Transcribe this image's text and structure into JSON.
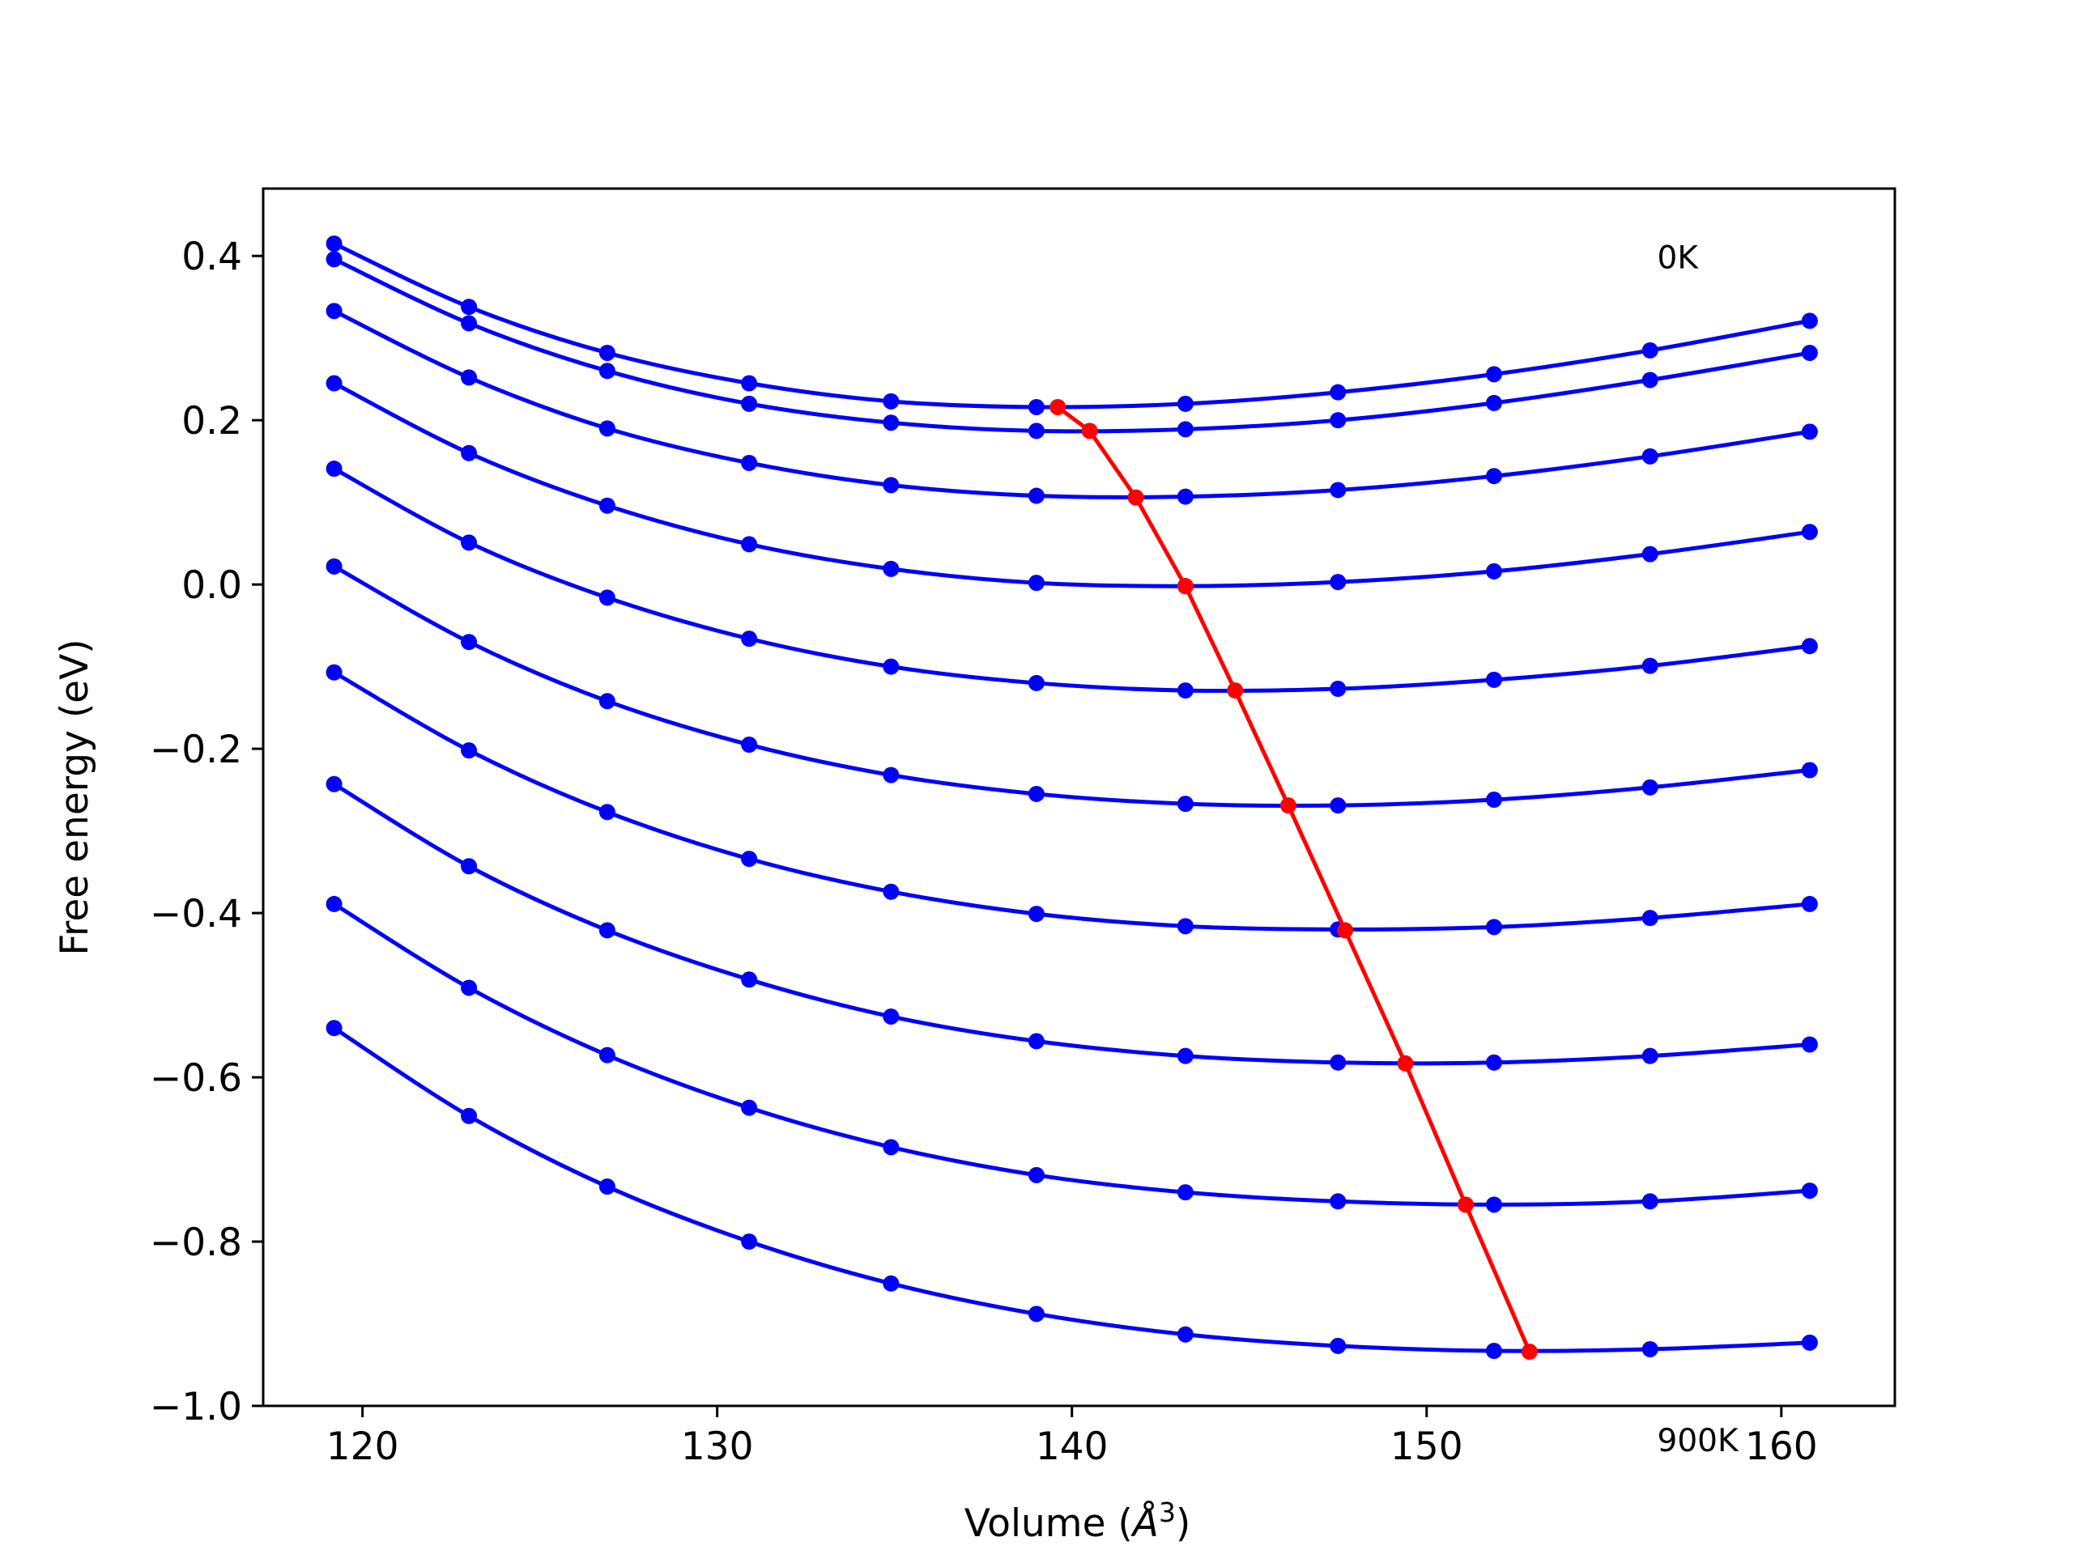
{
  "chart_data": {
    "type": "line",
    "title": "",
    "xlabel": "Volume (",
    "xlabel_symbol": "Å",
    "xlabel_exp": "3",
    "xlabel_close": ")",
    "ylabel": "Free energy (eV)",
    "xlim": [
      117.2,
      163.2
    ],
    "ylim": [
      -1.0,
      0.482
    ],
    "x_ticks": [
      120,
      130,
      140,
      150,
      160
    ],
    "x_tick_labels": [
      "120",
      "130",
      "140",
      "150",
      "160"
    ],
    "y_ticks": [
      0.4,
      0.2,
      0.0,
      -0.2,
      -0.4,
      -0.6,
      -0.8,
      -1.0
    ],
    "y_tick_labels": [
      "0.4",
      "0.2",
      "0.0",
      "−0.2",
      "−0.4",
      "−0.6",
      "−0.8",
      "−1.0"
    ],
    "grid": false,
    "annotations": [
      {
        "text": "0K",
        "x": 156.5,
        "y": 0.385
      },
      {
        "text": "900K",
        "x": 156.5,
        "y": -1.055
      }
    ],
    "x": [
      119.2,
      123.0,
      126.9,
      130.9,
      134.9,
      139.0,
      143.2,
      147.5,
      151.9,
      156.3,
      160.8
    ],
    "series_color": "#0000ff",
    "series": [
      {
        "values": [
          0.415,
          0.338,
          0.282,
          0.245,
          0.223,
          0.216,
          0.22,
          0.234,
          0.256,
          0.285,
          0.321
        ]
      },
      {
        "values": [
          0.396,
          0.318,
          0.26,
          0.22,
          0.197,
          0.187,
          0.189,
          0.2,
          0.221,
          0.249,
          0.282
        ]
      },
      {
        "values": [
          0.333,
          0.252,
          0.19,
          0.148,
          0.121,
          0.108,
          0.107,
          0.115,
          0.132,
          0.156,
          0.186
        ]
      },
      {
        "values": [
          0.245,
          0.16,
          0.096,
          0.049,
          0.019,
          0.002,
          -0.002,
          0.003,
          0.016,
          0.037,
          0.064
        ]
      },
      {
        "values": [
          0.141,
          0.051,
          -0.016,
          -0.066,
          -0.1,
          -0.12,
          -0.129,
          -0.127,
          -0.116,
          -0.099,
          -0.075
        ]
      },
      {
        "values": [
          0.022,
          -0.07,
          -0.142,
          -0.195,
          -0.232,
          -0.255,
          -0.267,
          -0.269,
          -0.262,
          -0.247,
          -0.226
        ]
      },
      {
        "values": [
          -0.107,
          -0.202,
          -0.277,
          -0.334,
          -0.374,
          -0.401,
          -0.416,
          -0.42,
          -0.417,
          -0.406,
          -0.389
        ]
      },
      {
        "values": [
          -0.243,
          -0.343,
          -0.421,
          -0.481,
          -0.526,
          -0.556,
          -0.574,
          -0.582,
          -0.582,
          -0.574,
          -0.56
        ]
      },
      {
        "values": [
          -0.389,
          -0.491,
          -0.573,
          -0.637,
          -0.685,
          -0.719,
          -0.74,
          -0.751,
          -0.755,
          -0.751,
          -0.738
        ]
      },
      {
        "values": [
          -0.54,
          -0.647,
          -0.733,
          -0.8,
          -0.851,
          -0.888,
          -0.913,
          -0.927,
          -0.933,
          -0.931,
          -0.923
        ]
      }
    ],
    "minima_color": "#ff0000",
    "minima": {
      "x": [
        139.6,
        140.5,
        141.8,
        143.2,
        144.6,
        146.1,
        147.7,
        149.4,
        151.1,
        152.9
      ],
      "y": [
        0.216,
        0.187,
        0.106,
        -0.002,
        -0.129,
        -0.269,
        -0.421,
        -0.583,
        -0.755,
        -0.934
      ]
    }
  }
}
